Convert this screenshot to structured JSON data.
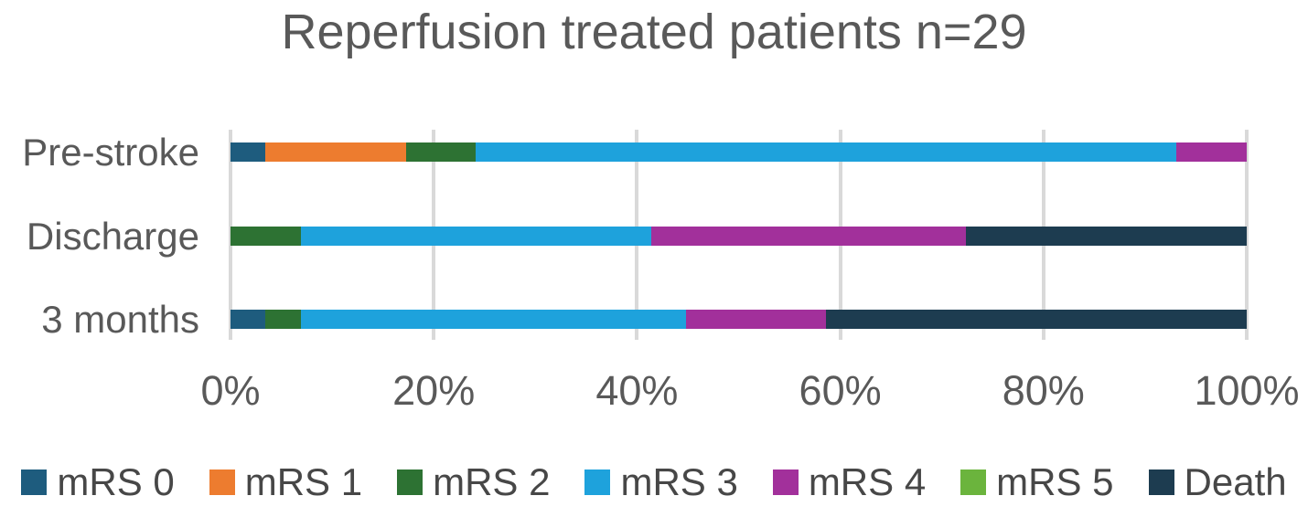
{
  "title": "Reperfusion treated patients n=29",
  "chart_data": {
    "type": "bar",
    "orientation": "horizontal",
    "stacked": true,
    "unit": "percent",
    "title": "Reperfusion treated patients n=29",
    "categories": [
      "Pre-stroke",
      "Discharge",
      "3 months"
    ],
    "series": [
      {
        "name": "mRS 0",
        "color": "#1e5c7e",
        "values": [
          3.45,
          0,
          3.45
        ]
      },
      {
        "name": "mRS 1",
        "color": "#ed7c2f",
        "values": [
          13.79,
          0,
          0
        ]
      },
      {
        "name": "mRS 2",
        "color": "#2d7233",
        "values": [
          6.9,
          6.9,
          3.45
        ]
      },
      {
        "name": "mRS 3",
        "color": "#1ea2dc",
        "values": [
          68.97,
          34.48,
          37.93
        ]
      },
      {
        "name": "mRS 4",
        "color": "#a2309b",
        "values": [
          6.9,
          31.03,
          13.79
        ]
      },
      {
        "name": "mRS 5",
        "color": "#6bb43d",
        "values": [
          0,
          0,
          0
        ]
      },
      {
        "name": "Death",
        "color": "#1d3c50",
        "values": [
          0,
          27.59,
          41.38
        ]
      }
    ],
    "x_ticks": [
      "0%",
      "20%",
      "40%",
      "60%",
      "80%",
      "100%"
    ],
    "xlim": [
      0,
      100
    ],
    "grid": true,
    "gridline_color": "#d9d9d9",
    "text_color": "#595959",
    "legend_position": "bottom"
  }
}
